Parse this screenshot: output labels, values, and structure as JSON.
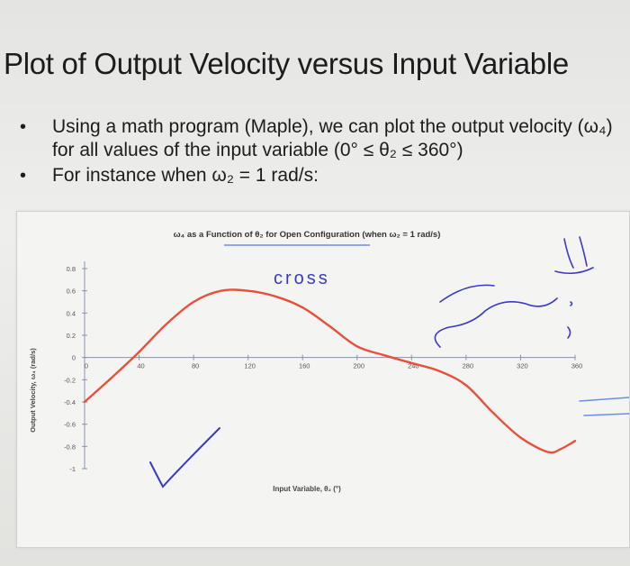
{
  "slide": {
    "title": "Plot of Output Velocity versus Input Variable",
    "bullets": [
      "Using a math program (Maple), we can plot the output velocity (ω₄) for all values of the input variable (0° ≤ θ₂ ≤ 360°)",
      "For instance when ω₂ = 1 rad/s:"
    ],
    "bullet_symbol": "•"
  },
  "chart_data": {
    "type": "line",
    "title": "ω₄ as a Function of θ₂ for Open Configuration (when ω₂ = 1 rad/s)",
    "xlabel": "Input Variable, θ₂ (°)",
    "ylabel": "Output Velocity, ω₄ (rad/s)",
    "xlim": [
      0,
      360
    ],
    "ylim": [
      -1,
      0.8
    ],
    "x_ticks": [
      "0",
      "40",
      "80",
      "120",
      "160",
      "200",
      "240",
      "280",
      "320",
      "360"
    ],
    "y_ticks": [
      "0.8",
      "0.6",
      "0.4",
      "0.2",
      "0",
      "-0.2",
      "-0.4",
      "-0.6",
      "-0.8",
      "-1"
    ],
    "grid": false,
    "series": [
      {
        "color": "#e8503a",
        "x": [
          0,
          20,
          40,
          60,
          80,
          100,
          120,
          140,
          160,
          180,
          200,
          220,
          240,
          260,
          280,
          300,
          320,
          340,
          350,
          360
        ],
        "y": [
          -0.4,
          -0.18,
          0.05,
          0.3,
          0.5,
          0.6,
          0.6,
          0.55,
          0.45,
          0.28,
          0.1,
          0.02,
          -0.05,
          -0.12,
          -0.25,
          -0.5,
          -0.72,
          -0.85,
          -0.82,
          -0.75
        ]
      }
    ]
  },
  "handwriting": {
    "word": "cross"
  },
  "colors": {
    "curve": "#e8503a",
    "annotation_ink": "#3a3ac8",
    "highlight_ink": "#6a8ee8"
  }
}
